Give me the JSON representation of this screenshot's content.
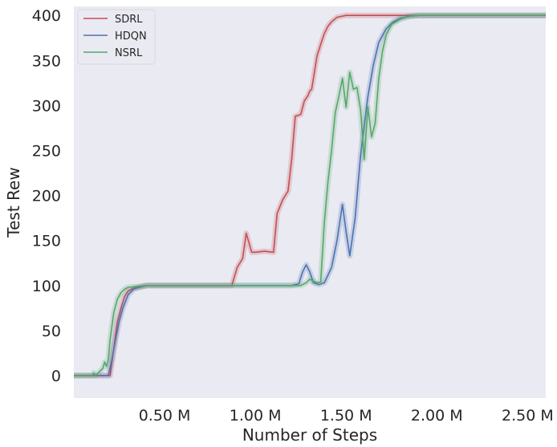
{
  "chart_data": {
    "type": "line",
    "title": "",
    "xlabel": "Number of Steps",
    "ylabel": "Test Rew",
    "xlim": [
      0,
      2.6
    ],
    "ylim": [
      -25,
      410
    ],
    "x_ticks": [
      {
        "value": 0.5,
        "label": "0.50 M"
      },
      {
        "value": 1.0,
        "label": "1.00 M"
      },
      {
        "value": 1.5,
        "label": "1.50 M"
      },
      {
        "value": 2.0,
        "label": "2.00 M"
      },
      {
        "value": 2.5,
        "label": "2.50 M"
      }
    ],
    "y_ticks": [
      0,
      50,
      100,
      150,
      200,
      250,
      300,
      350,
      400
    ],
    "grid": false,
    "background": "#eaeaf2",
    "legend_position": "top-left",
    "series": [
      {
        "name": "SDRL",
        "color": "#c44e52",
        "x": [
          0,
          0.2,
          0.21,
          0.22,
          0.23,
          0.24,
          0.25,
          0.26,
          0.28,
          0.3,
          0.33,
          0.36,
          0.4,
          0.45,
          0.6,
          0.75,
          0.87,
          0.9,
          0.93,
          0.95,
          0.98,
          1.0,
          1.05,
          1.1,
          1.12,
          1.15,
          1.18,
          1.2,
          1.22,
          1.25,
          1.27,
          1.29,
          1.3,
          1.31,
          1.32,
          1.34,
          1.36,
          1.38,
          1.4,
          1.42,
          1.45,
          1.5,
          1.6,
          1.8,
          2.0,
          2.3,
          2.6
        ],
        "y": [
          0,
          0,
          15,
          30,
          45,
          60,
          67,
          75,
          88,
          94,
          97,
          98,
          100,
          100,
          100,
          100,
          100,
          120,
          130,
          158,
          137,
          137,
          138,
          137,
          180,
          195,
          205,
          240,
          288,
          290,
          305,
          311,
          316,
          318,
          330,
          355,
          368,
          380,
          388,
          393,
          398,
          400,
          400,
          400,
          400,
          400,
          400
        ]
      },
      {
        "name": "HDQN",
        "color": "#4c72b0",
        "x": [
          0,
          0.19,
          0.21,
          0.23,
          0.25,
          0.27,
          0.3,
          0.33,
          0.36,
          0.4,
          0.5,
          0.7,
          0.9,
          1.1,
          1.2,
          1.24,
          1.26,
          1.28,
          1.3,
          1.32,
          1.35,
          1.38,
          1.42,
          1.45,
          1.48,
          1.5,
          1.52,
          1.55,
          1.58,
          1.62,
          1.65,
          1.68,
          1.72,
          1.76,
          1.8,
          1.85,
          1.9,
          2.0,
          2.3,
          2.6
        ],
        "y": [
          0,
          0,
          18,
          40,
          60,
          75,
          90,
          96,
          98,
          100,
          100,
          100,
          100,
          100,
          100,
          102,
          115,
          123,
          115,
          103,
          101,
          103,
          120,
          150,
          190,
          160,
          133,
          175,
          245,
          310,
          345,
          370,
          385,
          393,
          397,
          399,
          400,
          400,
          400,
          400
        ]
      },
      {
        "name": "NSRL",
        "color": "#55a868",
        "x": [
          0,
          0.1,
          0.11,
          0.12,
          0.16,
          0.17,
          0.18,
          0.19,
          0.2,
          0.22,
          0.24,
          0.26,
          0.28,
          0.3,
          0.35,
          0.4,
          0.5,
          0.7,
          0.9,
          1.1,
          1.2,
          1.25,
          1.28,
          1.3,
          1.32,
          1.34,
          1.36,
          1.38,
          1.4,
          1.42,
          1.44,
          1.46,
          1.48,
          1.5,
          1.52,
          1.54,
          1.56,
          1.58,
          1.6,
          1.62,
          1.64,
          1.66,
          1.68,
          1.7,
          1.72,
          1.75,
          1.8,
          1.85,
          1.9,
          2.0,
          2.3,
          2.6
        ],
        "y": [
          0,
          0,
          3,
          0,
          8,
          15,
          10,
          18,
          40,
          70,
          85,
          92,
          96,
          98,
          99,
          100,
          100,
          100,
          100,
          100,
          100,
          100,
          103,
          107,
          105,
          103,
          104,
          170,
          215,
          250,
          292,
          310,
          330,
          298,
          337,
          318,
          320,
          295,
          240,
          298,
          265,
          280,
          330,
          360,
          378,
          390,
          396,
          399,
          400,
          400,
          400,
          400
        ]
      }
    ]
  }
}
